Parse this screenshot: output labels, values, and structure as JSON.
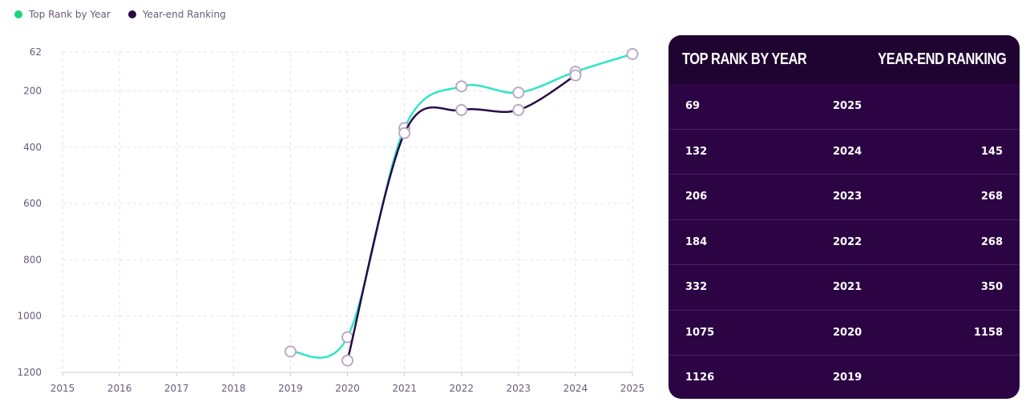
{
  "legend": [
    {
      "label": "Top Rank by Year",
      "color": "#1fd27a"
    },
    {
      "label": "Year-end Ranking",
      "color": "#2a0a45"
    }
  ],
  "table": {
    "headers": [
      "TOP RANK BY YEAR",
      "YEAR-END RANKING"
    ],
    "rows": [
      {
        "top": "69",
        "year": "2025",
        "end": ""
      },
      {
        "top": "132",
        "year": "2024",
        "end": "145"
      },
      {
        "top": "206",
        "year": "2023",
        "end": "268"
      },
      {
        "top": "184",
        "year": "2022",
        "end": "268"
      },
      {
        "top": "332",
        "year": "2021",
        "end": "350"
      },
      {
        "top": "1075",
        "year": "2020",
        "end": "1158"
      },
      {
        "top": "1126",
        "year": "2019",
        "end": ""
      }
    ]
  },
  "chart_data": {
    "type": "line",
    "x": [
      2015,
      2016,
      2017,
      2018,
      2019,
      2020,
      2021,
      2022,
      2023,
      2024,
      2025
    ],
    "xlim": [
      2015,
      2025
    ],
    "ylim": [
      62,
      1200
    ],
    "y_inverted": true,
    "y_ticks": [
      62,
      200,
      400,
      600,
      800,
      1000,
      1200
    ],
    "grid": true,
    "legend_position": "top-left",
    "series": [
      {
        "name": "Top Rank by Year",
        "color": "#2ee6c4",
        "points": [
          [
            2019,
            1126
          ],
          [
            2020,
            1075
          ],
          [
            2021,
            332
          ],
          [
            2022,
            184
          ],
          [
            2023,
            206
          ],
          [
            2024,
            132
          ],
          [
            2025,
            69
          ]
        ]
      },
      {
        "name": "Year-end Ranking",
        "color": "#2a0a45",
        "points": [
          [
            2020,
            1158
          ],
          [
            2021,
            350
          ],
          [
            2022,
            268
          ],
          [
            2023,
            268
          ],
          [
            2024,
            145
          ]
        ]
      }
    ]
  }
}
